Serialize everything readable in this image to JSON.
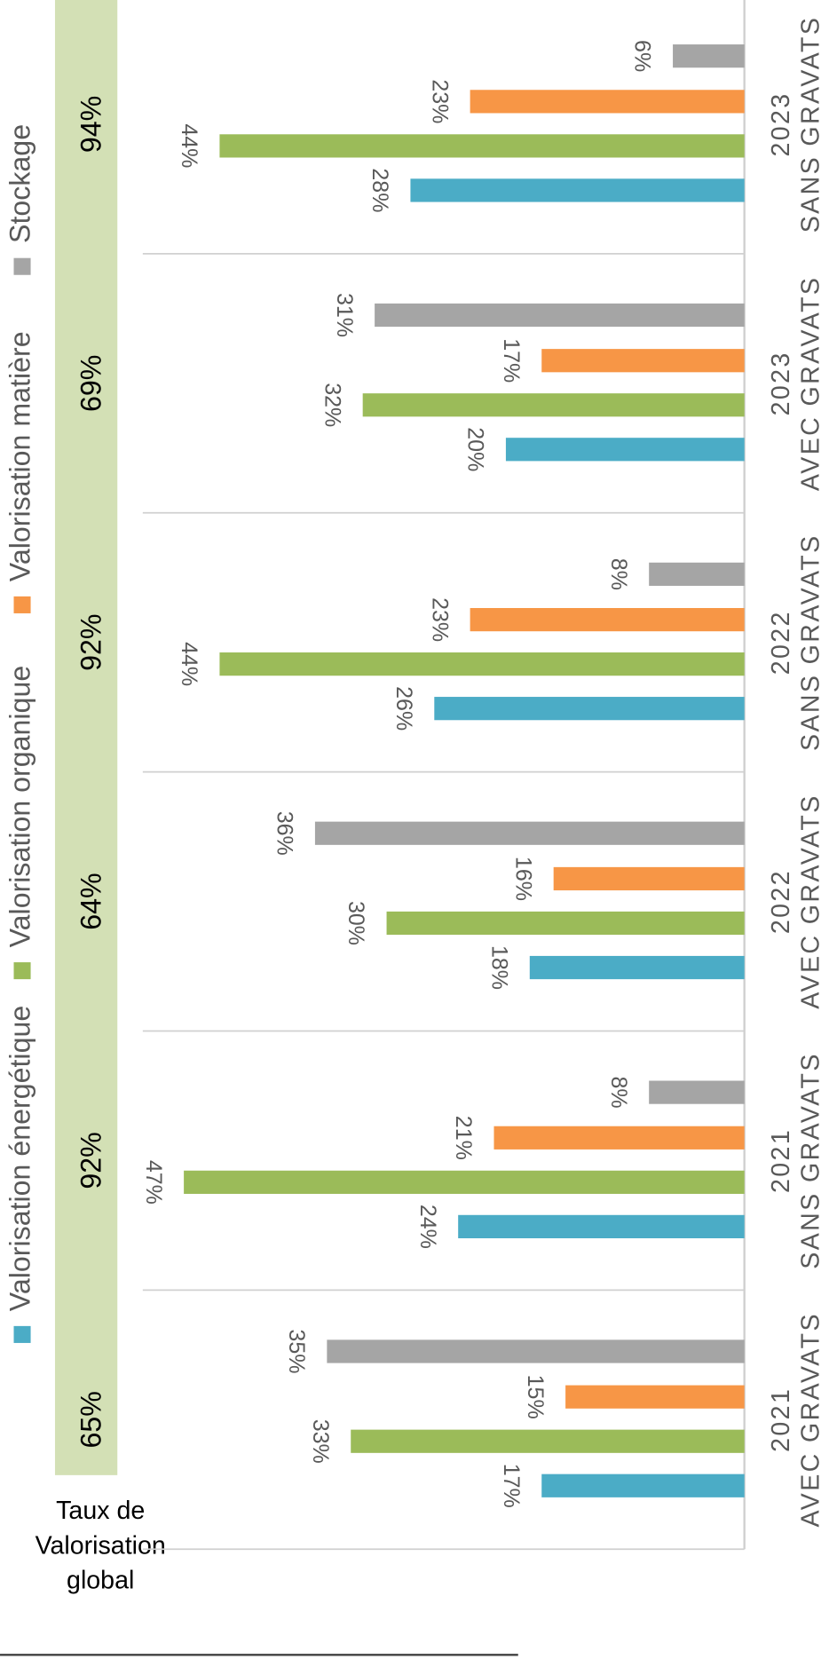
{
  "chart_data": {
    "type": "bar",
    "categories": [
      [
        "2021",
        "AVEC GRAVATS"
      ],
      [
        "2021",
        "SANS GRAVATS"
      ],
      [
        "2022",
        "AVEC GRAVATS"
      ],
      [
        "2022",
        "SANS GRAVATS"
      ],
      [
        "2023",
        "AVEC GRAVATS"
      ],
      [
        "2023",
        "SANS GRAVATS"
      ]
    ],
    "series": [
      {
        "name": "Valorisation énergétique",
        "color": "#4bacc6",
        "values": [
          17,
          24,
          18,
          26,
          20,
          28
        ],
        "value_labels": [
          "17%",
          "24%",
          "18%",
          "26%",
          "20%",
          "28%"
        ]
      },
      {
        "name": "Valorisation organique",
        "color": "#9bbb59",
        "values": [
          33,
          47,
          30,
          44,
          32,
          44
        ],
        "value_labels": [
          "33%",
          "47%",
          "30%",
          "44%",
          "32%",
          "44%"
        ]
      },
      {
        "name": "Valorisation matière",
        "color": "#f79646",
        "values": [
          15,
          21,
          16,
          23,
          17,
          23
        ],
        "value_labels": [
          "15%",
          "21%",
          "16%",
          "23%",
          "17%",
          "23%"
        ]
      },
      {
        "name": "Stockage",
        "color": "#a5a5a5",
        "values": [
          35,
          8,
          36,
          8,
          31,
          6
        ],
        "value_labels": [
          "35%",
          "8%",
          "36%",
          "8%",
          "31%",
          "6%"
        ]
      }
    ],
    "global_rate": {
      "label": [
        "Taux de",
        "Valorisation",
        "global"
      ],
      "color": "#d3e0b5",
      "values": [
        65,
        92,
        64,
        92,
        69,
        94
      ],
      "value_labels": [
        "65%",
        "92%",
        "64%",
        "92%",
        "69%",
        "94%"
      ]
    }
  }
}
